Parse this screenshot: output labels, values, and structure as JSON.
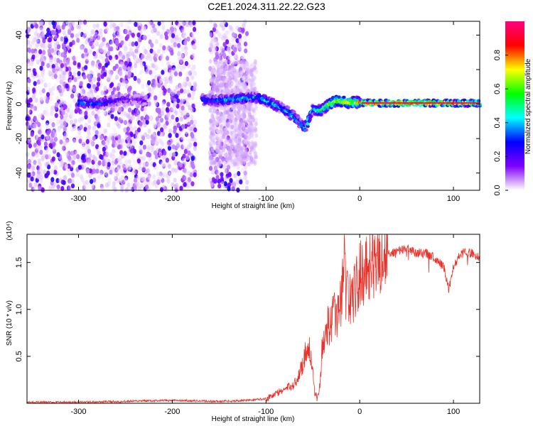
{
  "figure": {
    "title": "C2E1.2024.311.22.22.G23"
  },
  "chart_data": [
    {
      "type": "heatmap",
      "title": "",
      "xlabel": "Height of straight line (km)",
      "ylabel": "Frequency (Hz)",
      "xlim": [
        -355,
        128
      ],
      "ylim": [
        -50,
        48
      ],
      "x_ticks": [
        -300,
        -200,
        -100,
        0,
        100
      ],
      "x_tick_labels": [
        "-300",
        "-200",
        "-100",
        "0",
        "100"
      ],
      "y_ticks": [
        -40,
        -20,
        0,
        20,
        40
      ],
      "y_tick_labels": [
        "-40",
        "-20",
        "0",
        "20",
        "40"
      ],
      "colorbar": {
        "label": "Normalized spectral amplitude",
        "range": [
          0,
          1
        ],
        "ticks": [
          0.0,
          0.2,
          0.4,
          0.6,
          0.8
        ],
        "tick_labels": [
          "0.0",
          "0.2",
          "0.4",
          "0.6",
          "0.8"
        ],
        "colors": [
          "#ffffff",
          "#8000ff",
          "#0000ff",
          "#00ffff",
          "#00ff00",
          "#ffff00",
          "#ff0000",
          "#ff0080"
        ]
      },
      "ridge": {
        "x": [
          -295,
          -280,
          -250,
          -230,
          -200,
          -175,
          -150,
          -130,
          -110,
          -95,
          -85,
          -75,
          -65,
          -58,
          -50,
          -42,
          -35,
          -25,
          -15,
          -5,
          0,
          10,
          30,
          60,
          100,
          128
        ],
        "y": [
          1,
          0,
          3,
          2,
          1,
          3,
          2,
          3,
          4,
          1,
          -2,
          -5,
          -10,
          -14,
          -3,
          -4,
          -1,
          2,
          1,
          1,
          1,
          0.5,
          0.5,
          0.5,
          0.5,
          0.5
        ],
        "amplitude": [
          0.45,
          0.4,
          0.25,
          0.25,
          0.2,
          0.3,
          0.45,
          0.5,
          0.45,
          0.5,
          0.45,
          0.5,
          0.45,
          0.55,
          0.5,
          0.6,
          0.7,
          0.8,
          0.85,
          0.8,
          0.9,
          0.95,
          0.95,
          0.95,
          0.9,
          0.9
        ]
      },
      "grid": false
    },
    {
      "type": "line",
      "title": "",
      "xlabel": "Height of straight line (km)",
      "ylabel": "SNR (10 * v/v)",
      "y_multiplier_label": "(x10⁴)",
      "xlim": [
        -355,
        128
      ],
      "ylim": [
        0,
        1.8
      ],
      "x_ticks": [
        -300,
        -200,
        -100,
        0,
        100
      ],
      "x_tick_labels": [
        "-300",
        "-200",
        "-100",
        "0",
        "100"
      ],
      "y_ticks": [
        0.5,
        1.0,
        1.5
      ],
      "y_tick_labels": [
        "0.5",
        "1.0",
        "1.5"
      ],
      "series": [
        {
          "color": "#e8322a",
          "x": [
            -355,
            -300,
            -250,
            -200,
            -150,
            -120,
            -100,
            -90,
            -80,
            -70,
            -65,
            -60,
            -55,
            -52,
            -50,
            -48,
            -45,
            -42,
            -40,
            -35,
            -30,
            -25,
            -20,
            -17,
            -15,
            -10,
            -5,
            0,
            5,
            10,
            20,
            30,
            40,
            50,
            60,
            70,
            80,
            90,
            95,
            100,
            105,
            110,
            120,
            128
          ],
          "values": [
            0.01,
            0.01,
            0.02,
            0.03,
            0.02,
            0.03,
            0.05,
            0.1,
            0.15,
            0.2,
            0.3,
            0.45,
            0.65,
            0.5,
            0.3,
            0.1,
            0.05,
            0.25,
            0.6,
            0.8,
            0.9,
            0.95,
            1.05,
            1.75,
            1.2,
            1.1,
            1.2,
            1.35,
            1.45,
            1.5,
            1.55,
            1.6,
            1.62,
            1.65,
            1.6,
            1.6,
            1.55,
            1.45,
            1.2,
            1.45,
            1.55,
            1.6,
            1.6,
            1.55
          ]
        }
      ],
      "grid": false
    }
  ]
}
